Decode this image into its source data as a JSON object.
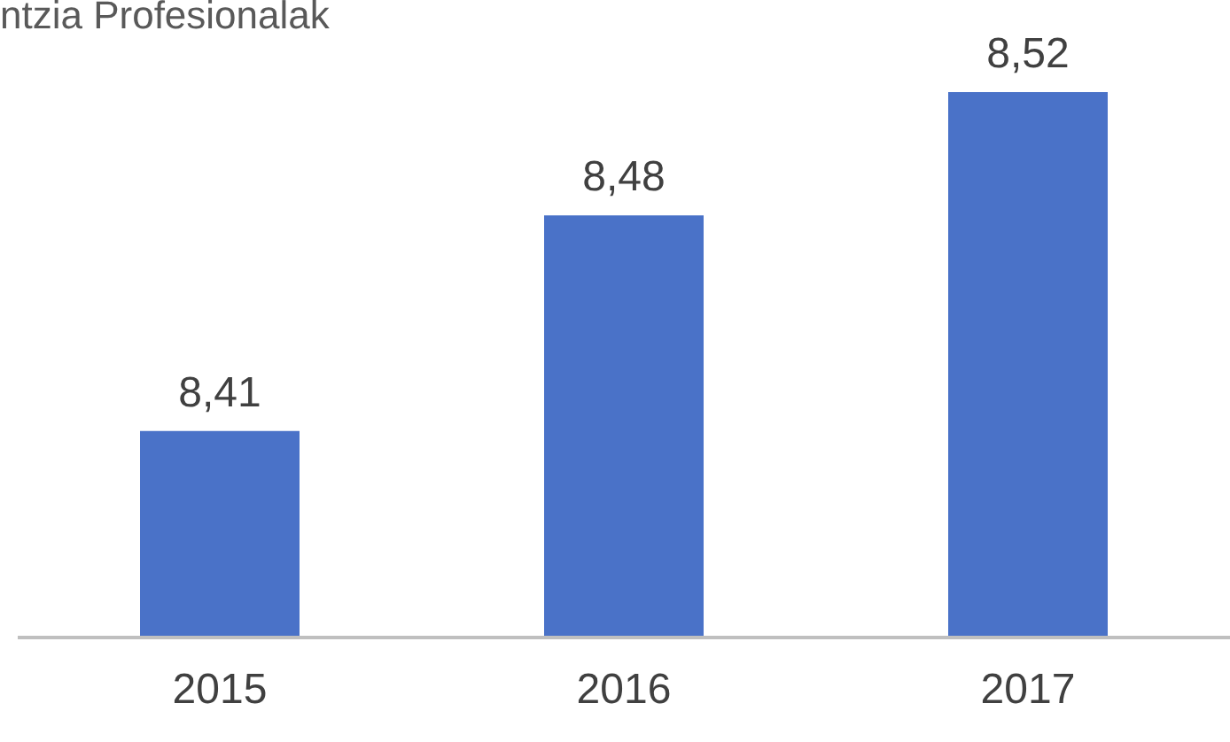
{
  "chart_data": {
    "type": "bar",
    "title": "ntzia Profesionalak",
    "categories": [
      "2015",
      "2016",
      "2017"
    ],
    "values": [
      8.41,
      8.48,
      8.52
    ],
    "value_labels": [
      "8,41",
      "8,48",
      "8,52"
    ],
    "color": "#4a72c8",
    "ylim": [
      8.343,
      8.52
    ],
    "tick_labels": "x",
    "grid": false
  }
}
